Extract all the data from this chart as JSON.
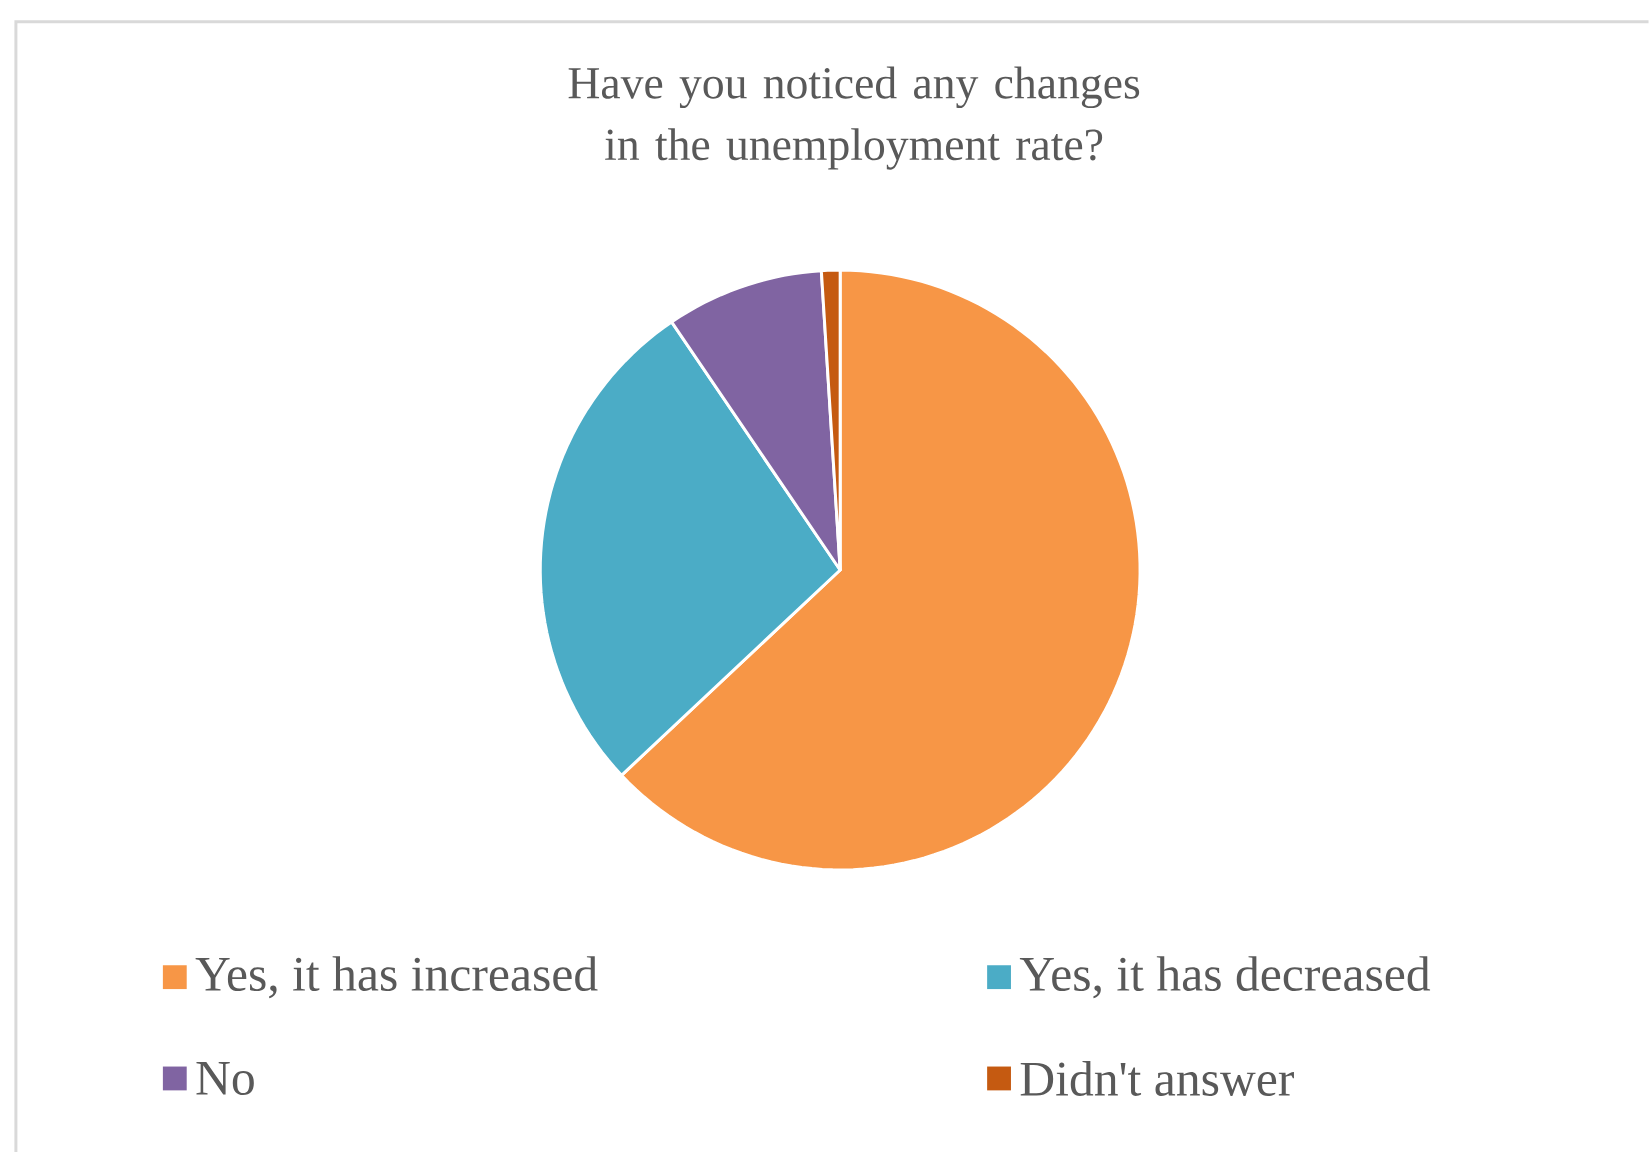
{
  "chart_data": {
    "type": "pie",
    "title": "Have you noticed any changes in the unemployment rate?",
    "categories": [
      "Yes, it has increased",
      "Yes, it has decreased",
      "No",
      "Didn't answer"
    ],
    "values": [
      63,
      27.5,
      8.5,
      1
    ],
    "colors": [
      "#f79646",
      "#4bacc6",
      "#8064a2",
      "#c55a11"
    ],
    "legend": "bottom"
  }
}
